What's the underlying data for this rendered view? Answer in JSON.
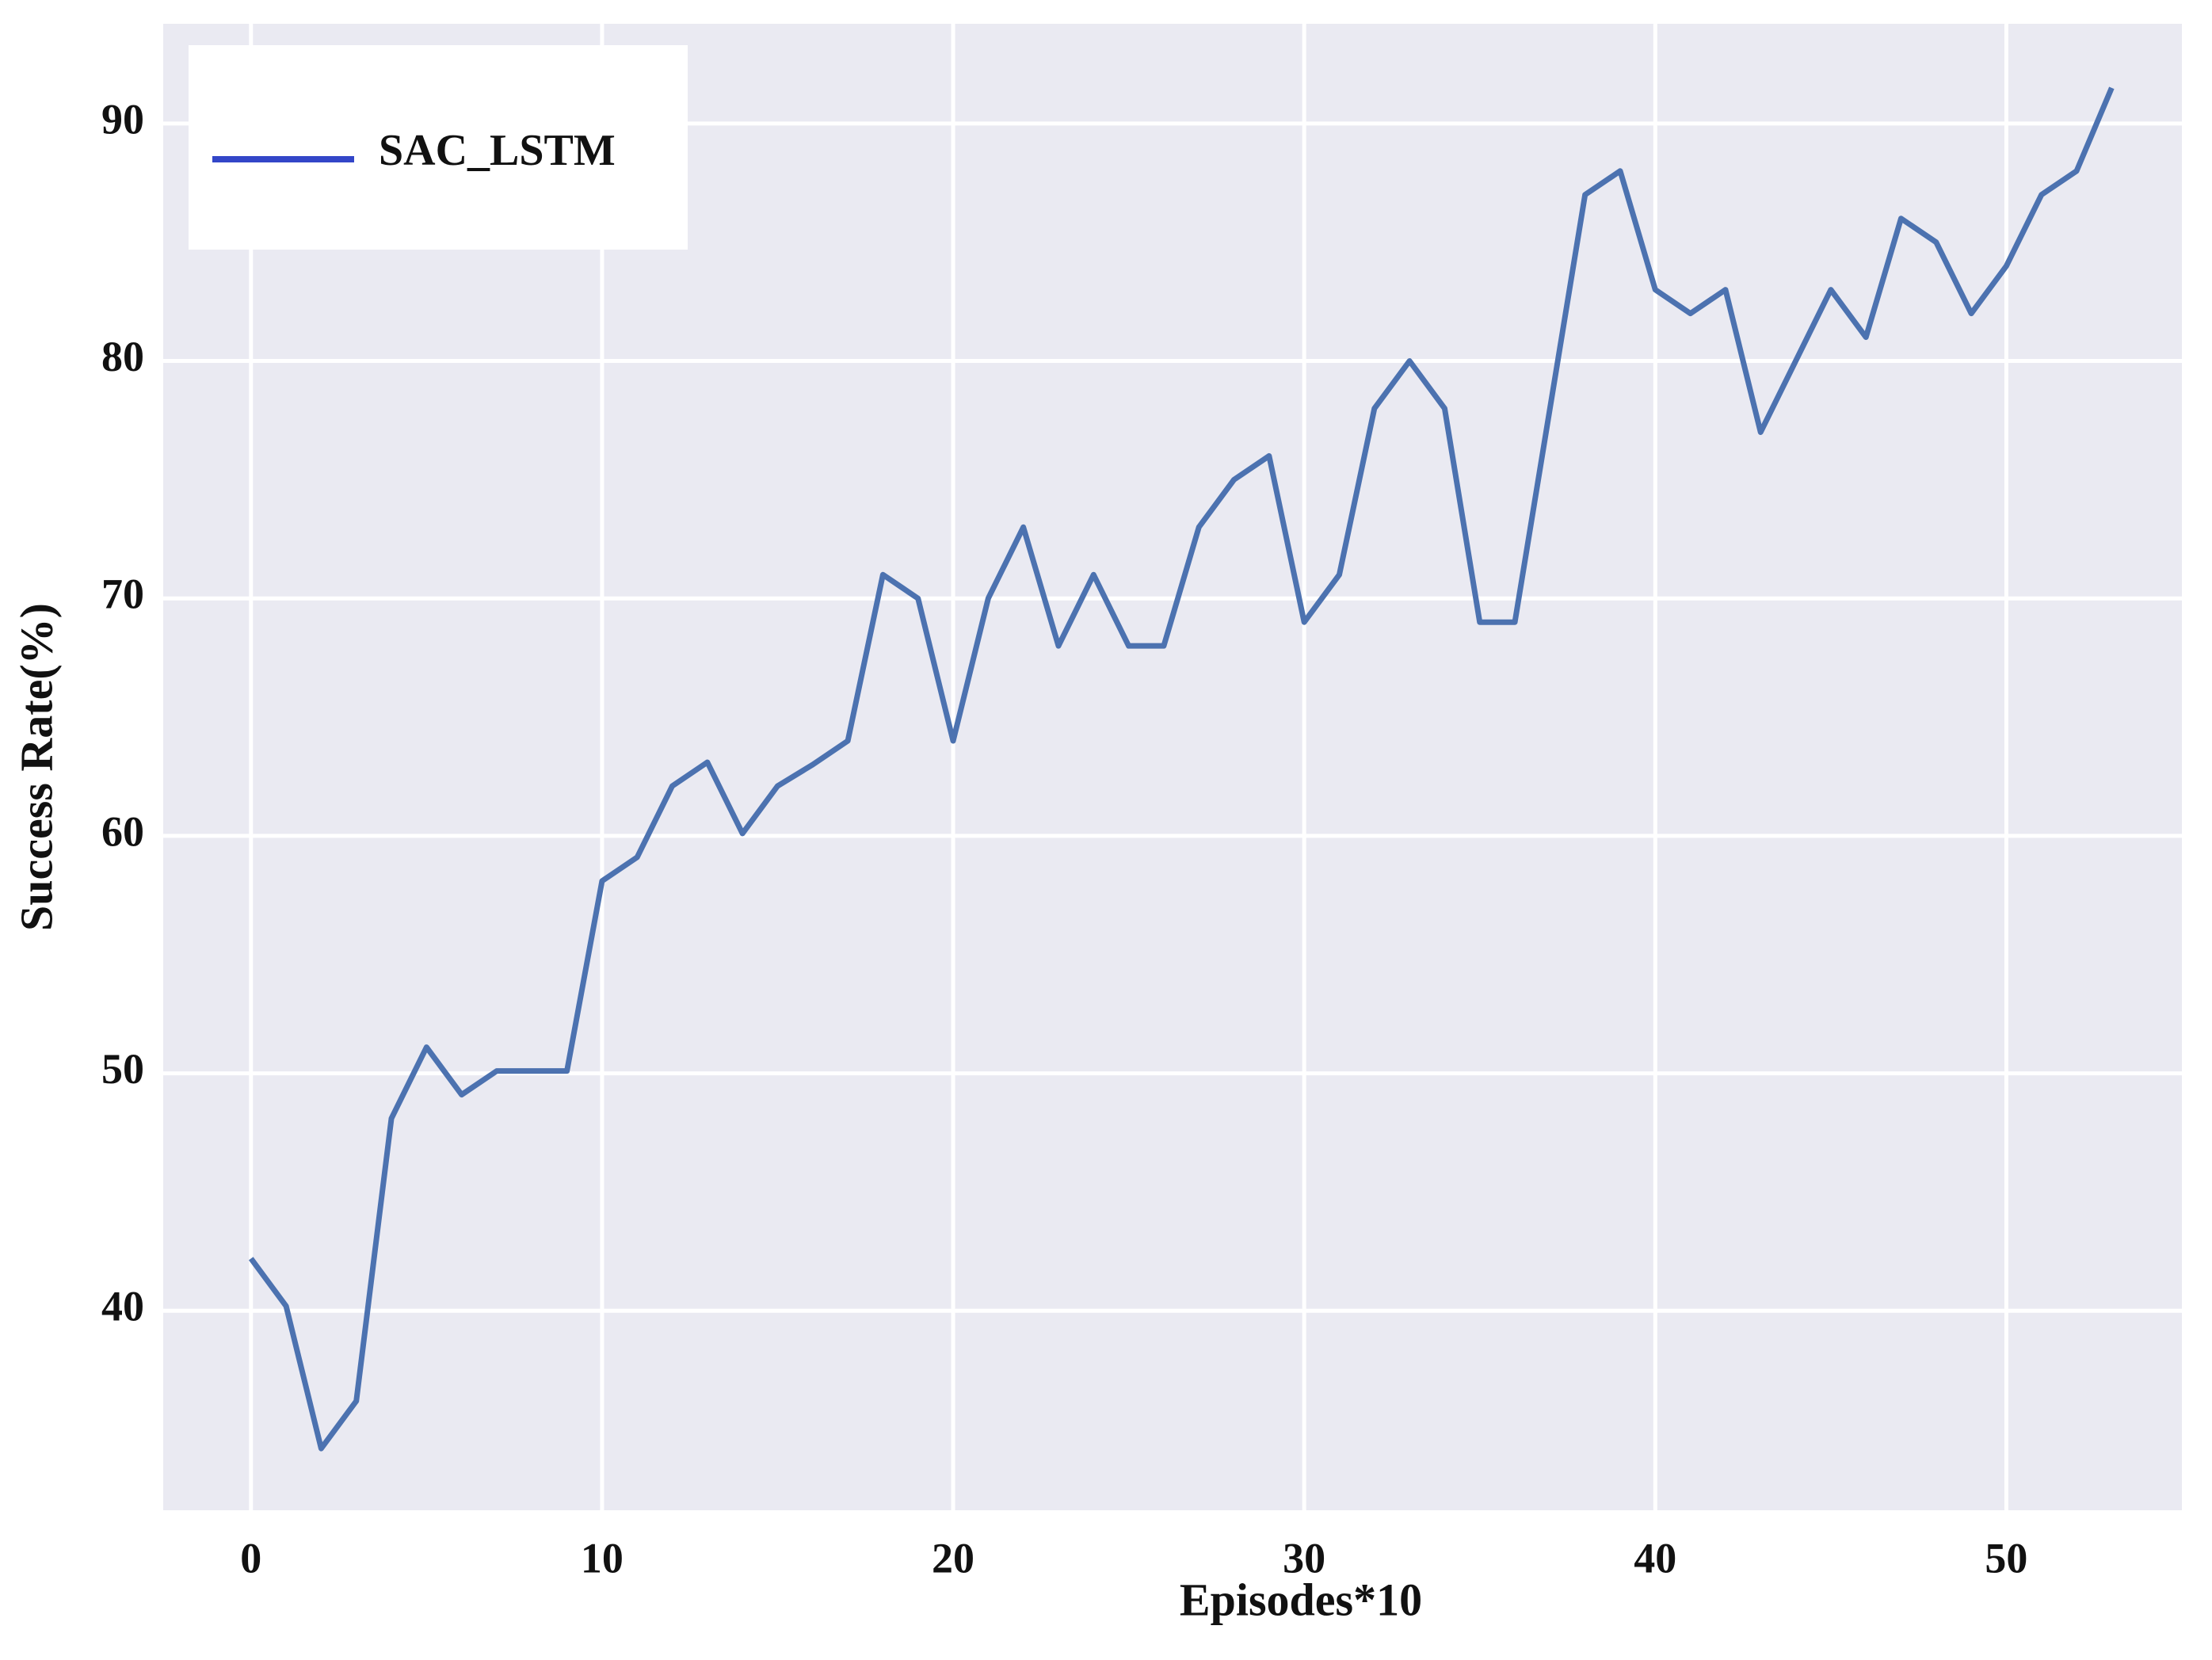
{
  "chart_data": {
    "type": "line",
    "x_label": "Episodes*10",
    "y_label": "Success Rate(%)",
    "x": [
      0,
      1,
      2,
      3,
      4,
      5,
      6,
      7,
      8,
      9,
      10,
      11,
      12,
      13,
      14,
      15,
      16,
      17,
      18,
      19,
      20,
      21,
      22,
      23,
      24,
      25,
      26,
      27,
      28,
      29,
      30,
      31,
      32,
      33,
      34,
      35,
      36,
      37,
      38,
      39,
      40,
      41,
      42,
      43,
      44,
      45,
      46,
      47,
      48,
      49,
      50,
      51,
      52,
      53
    ],
    "series": [
      {
        "name": "SAC_LSTM",
        "color": "#4c72b0",
        "legend_color": "#3346c8",
        "values": [
          42.2,
          40.2,
          34.2,
          36.2,
          48.1,
          51.1,
          49.1,
          50.1,
          50.1,
          50.1,
          58.1,
          59.1,
          62.1,
          63.1,
          60.1,
          62.1,
          63,
          64,
          71,
          70,
          64,
          70,
          73,
          68,
          71,
          68,
          68,
          73,
          75,
          76,
          69,
          71,
          78,
          80,
          78,
          69,
          69,
          78,
          87,
          88,
          83,
          82,
          83,
          77,
          80,
          83,
          81,
          86,
          85,
          82,
          84,
          87,
          88,
          91.5
        ]
      }
    ],
    "xlim": [
      -2.5,
      55
    ],
    "xticks": [
      0,
      10,
      20,
      30,
      40,
      50
    ],
    "ylim": [
      31.6,
      94.2
    ],
    "yticks": [
      40,
      50,
      60,
      70,
      80,
      90
    ],
    "grid": true,
    "legend_position": "upper left"
  }
}
